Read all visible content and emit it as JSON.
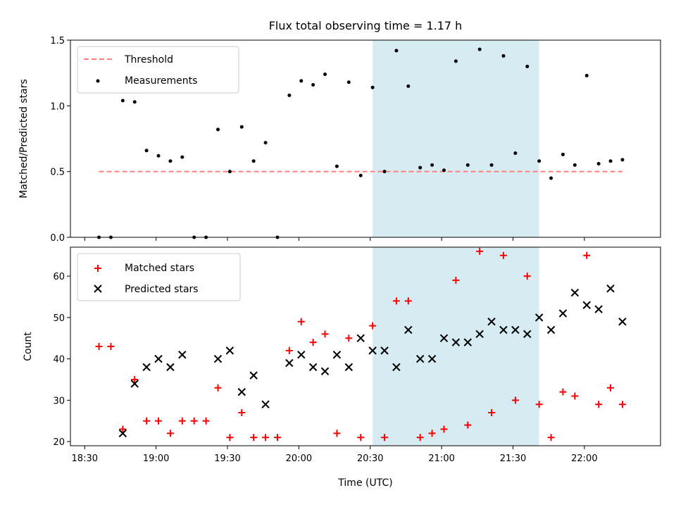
{
  "chart_data": [
    {
      "type": "scatter",
      "title": "Flux total observing time = 1.17 h",
      "ylabel": "Matched/Predicted stars",
      "xlabel": "",
      "xlim": [
        "18:24",
        "22:32"
      ],
      "ylim": [
        0,
        1.5
      ],
      "yticks": [
        "0.0",
        "0.5",
        "1.0",
        "1.5"
      ],
      "grid": false,
      "legend_position": "top-left",
      "shaded_interval": [
        "20:31",
        "21:41"
      ],
      "shade_color": "#add8e6",
      "threshold": {
        "name": "Threshold",
        "value": 0.5,
        "x_range": [
          "18:36",
          "22:16"
        ],
        "color": "#ff7f7f"
      },
      "series": [
        {
          "name": "Measurements",
          "color": "#000000",
          "x": [
            "18:36",
            "18:41",
            "18:46",
            "18:51",
            "18:56",
            "19:01",
            "19:06",
            "19:11",
            "19:16",
            "19:21",
            "19:26",
            "19:31",
            "19:36",
            "19:41",
            "19:46",
            "19:51",
            "19:56",
            "20:01",
            "20:06",
            "20:11",
            "20:16",
            "20:21",
            "20:26",
            "20:31",
            "20:36",
            "20:41",
            "20:46",
            "20:51",
            "20:56",
            "21:01",
            "21:06",
            "21:11",
            "21:16",
            "21:21",
            "21:26",
            "21:31",
            "21:36",
            "21:41",
            "21:46",
            "21:51",
            "21:56",
            "22:01",
            "22:06",
            "22:11",
            "22:16"
          ],
          "y": [
            0.0,
            0.0,
            1.04,
            1.03,
            0.66,
            0.62,
            0.58,
            0.61,
            0.0,
            0.0,
            0.82,
            0.5,
            0.84,
            0.58,
            0.72,
            0.0,
            1.08,
            1.19,
            1.16,
            1.24,
            0.54,
            1.18,
            0.47,
            1.14,
            0.5,
            1.42,
            1.15,
            0.53,
            0.55,
            0.51,
            1.34,
            0.55,
            1.43,
            0.55,
            1.38,
            0.64,
            1.3,
            0.58,
            0.45,
            0.63,
            0.55,
            1.23,
            0.56,
            0.58,
            0.59
          ]
        }
      ]
    },
    {
      "type": "scatter",
      "title": "",
      "xlabel": "Time (UTC)",
      "ylabel": "Count",
      "xlim": [
        "18:24",
        "22:32"
      ],
      "ylim": [
        19,
        67
      ],
      "yticks": [
        "20",
        "30",
        "40",
        "50",
        "60"
      ],
      "xticks": [
        "18:30",
        "19:00",
        "19:30",
        "20:00",
        "20:30",
        "21:00",
        "21:30",
        "22:00"
      ],
      "grid": false,
      "legend_position": "top-left",
      "shaded_interval": [
        "20:31",
        "21:41"
      ],
      "shade_color": "#add8e6",
      "series": [
        {
          "name": "Matched stars",
          "marker": "+",
          "color": "#ff0000",
          "x": [
            "18:36",
            "18:41",
            "18:46",
            "18:51",
            "18:56",
            "19:01",
            "19:06",
            "19:11",
            "19:16",
            "19:21",
            "19:26",
            "19:31",
            "19:36",
            "19:41",
            "19:46",
            "19:51",
            "19:56",
            "20:01",
            "20:06",
            "20:11",
            "20:16",
            "20:21",
            "20:26",
            "20:31",
            "20:36",
            "20:41",
            "20:46",
            "20:51",
            "20:56",
            "21:01",
            "21:06",
            "21:11",
            "21:16",
            "21:21",
            "21:26",
            "21:31",
            "21:36",
            "21:41",
            "21:46",
            "21:51",
            "21:56",
            "22:01",
            "22:06",
            "22:11",
            "22:16"
          ],
          "y": [
            43,
            43,
            23,
            35,
            25,
            25,
            22,
            25,
            25,
            25,
            33,
            21,
            27,
            21,
            21,
            21,
            42,
            49,
            44,
            46,
            22,
            45,
            21,
            48,
            21,
            54,
            54,
            21,
            22,
            23,
            59,
            24,
            66,
            27,
            65,
            30,
            60,
            29,
            21,
            32,
            31,
            65,
            29,
            33,
            29
          ]
        },
        {
          "name": "Predicted stars",
          "marker": "x",
          "color": "#000000",
          "x": [
            "18:46",
            "18:51",
            "18:56",
            "19:01",
            "19:06",
            "19:11",
            "19:26",
            "19:31",
            "19:36",
            "19:41",
            "19:46",
            "19:56",
            "20:01",
            "20:06",
            "20:11",
            "20:16",
            "20:21",
            "20:26",
            "20:31",
            "20:36",
            "20:41",
            "20:46",
            "20:51",
            "20:56",
            "21:01",
            "21:06",
            "21:11",
            "21:16",
            "21:21",
            "21:26",
            "21:31",
            "21:36",
            "21:41",
            "21:46",
            "21:51",
            "21:56",
            "22:01",
            "22:06",
            "22:11",
            "22:16"
          ],
          "y": [
            22,
            34,
            38,
            40,
            38,
            41,
            40,
            42,
            32,
            36,
            29,
            39,
            41,
            38,
            37,
            41,
            38,
            45,
            42,
            42,
            38,
            47,
            40,
            40,
            45,
            44,
            44,
            46,
            49,
            47,
            47,
            46,
            50,
            47,
            51,
            56,
            53,
            52,
            57,
            49
          ]
        }
      ]
    }
  ]
}
